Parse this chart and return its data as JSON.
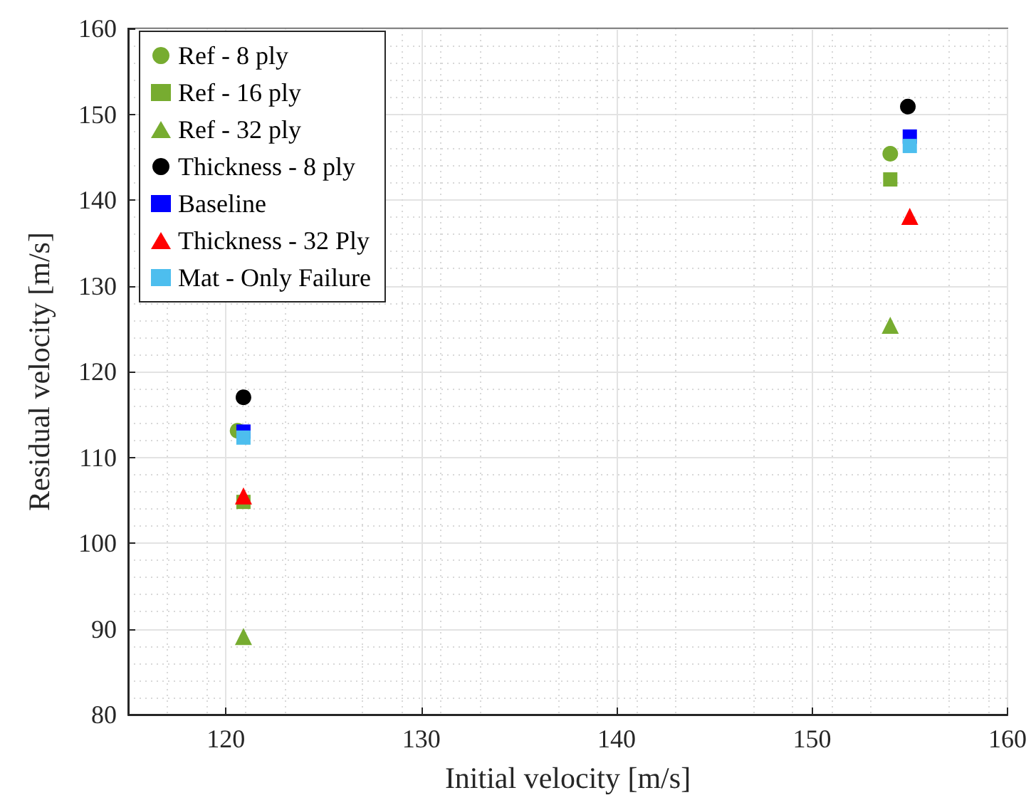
{
  "chart_data": {
    "type": "scatter",
    "xlabel": "Initial velocity [m/s]",
    "ylabel": "Residual velocity [m/s]",
    "xlim": [
      115,
      160
    ],
    "xticks": [
      120,
      130,
      140,
      150,
      160
    ],
    "ylim": [
      80,
      160
    ],
    "yticks": [
      80,
      90,
      100,
      110,
      120,
      130,
      140,
      150,
      160
    ],
    "grid": true,
    "legend": "top left",
    "series": [
      {
        "name": "Ref - 8 ply",
        "color": "#77ac30",
        "marker": "circle",
        "x": [
          120.6,
          154.0
        ],
        "values": [
          113.1,
          145.4
        ]
      },
      {
        "name": "Ref - 16 ply",
        "color": "#77ac30",
        "marker": "square",
        "x": [
          120.9,
          154.0
        ],
        "values": [
          104.8,
          142.4
        ]
      },
      {
        "name": "Ref - 32 ply",
        "color": "#77ac30",
        "marker": "triangle",
        "x": [
          120.9,
          154.0
        ],
        "values": [
          89.1,
          125.4
        ]
      },
      {
        "name": "Thickness - 8 ply",
        "color": "#000000",
        "marker": "circle",
        "x": [
          120.9,
          154.9
        ],
        "values": [
          117.0,
          150.9
        ]
      },
      {
        "name": "Baseline",
        "color": "#0000ff",
        "marker": "square",
        "x": [
          120.9,
          155.0
        ],
        "values": [
          113.0,
          147.4
        ]
      },
      {
        "name": "Thickness - 32 Ply",
        "color": "#ff0000",
        "marker": "triangle",
        "x": [
          120.9,
          155.0
        ],
        "values": [
          105.5,
          138.1
        ]
      },
      {
        "name": "Mat - Only Failure",
        "color": "#4dbeee",
        "marker": "square",
        "x": [
          120.9,
          155.0
        ],
        "values": [
          112.3,
          146.3
        ]
      }
    ]
  }
}
